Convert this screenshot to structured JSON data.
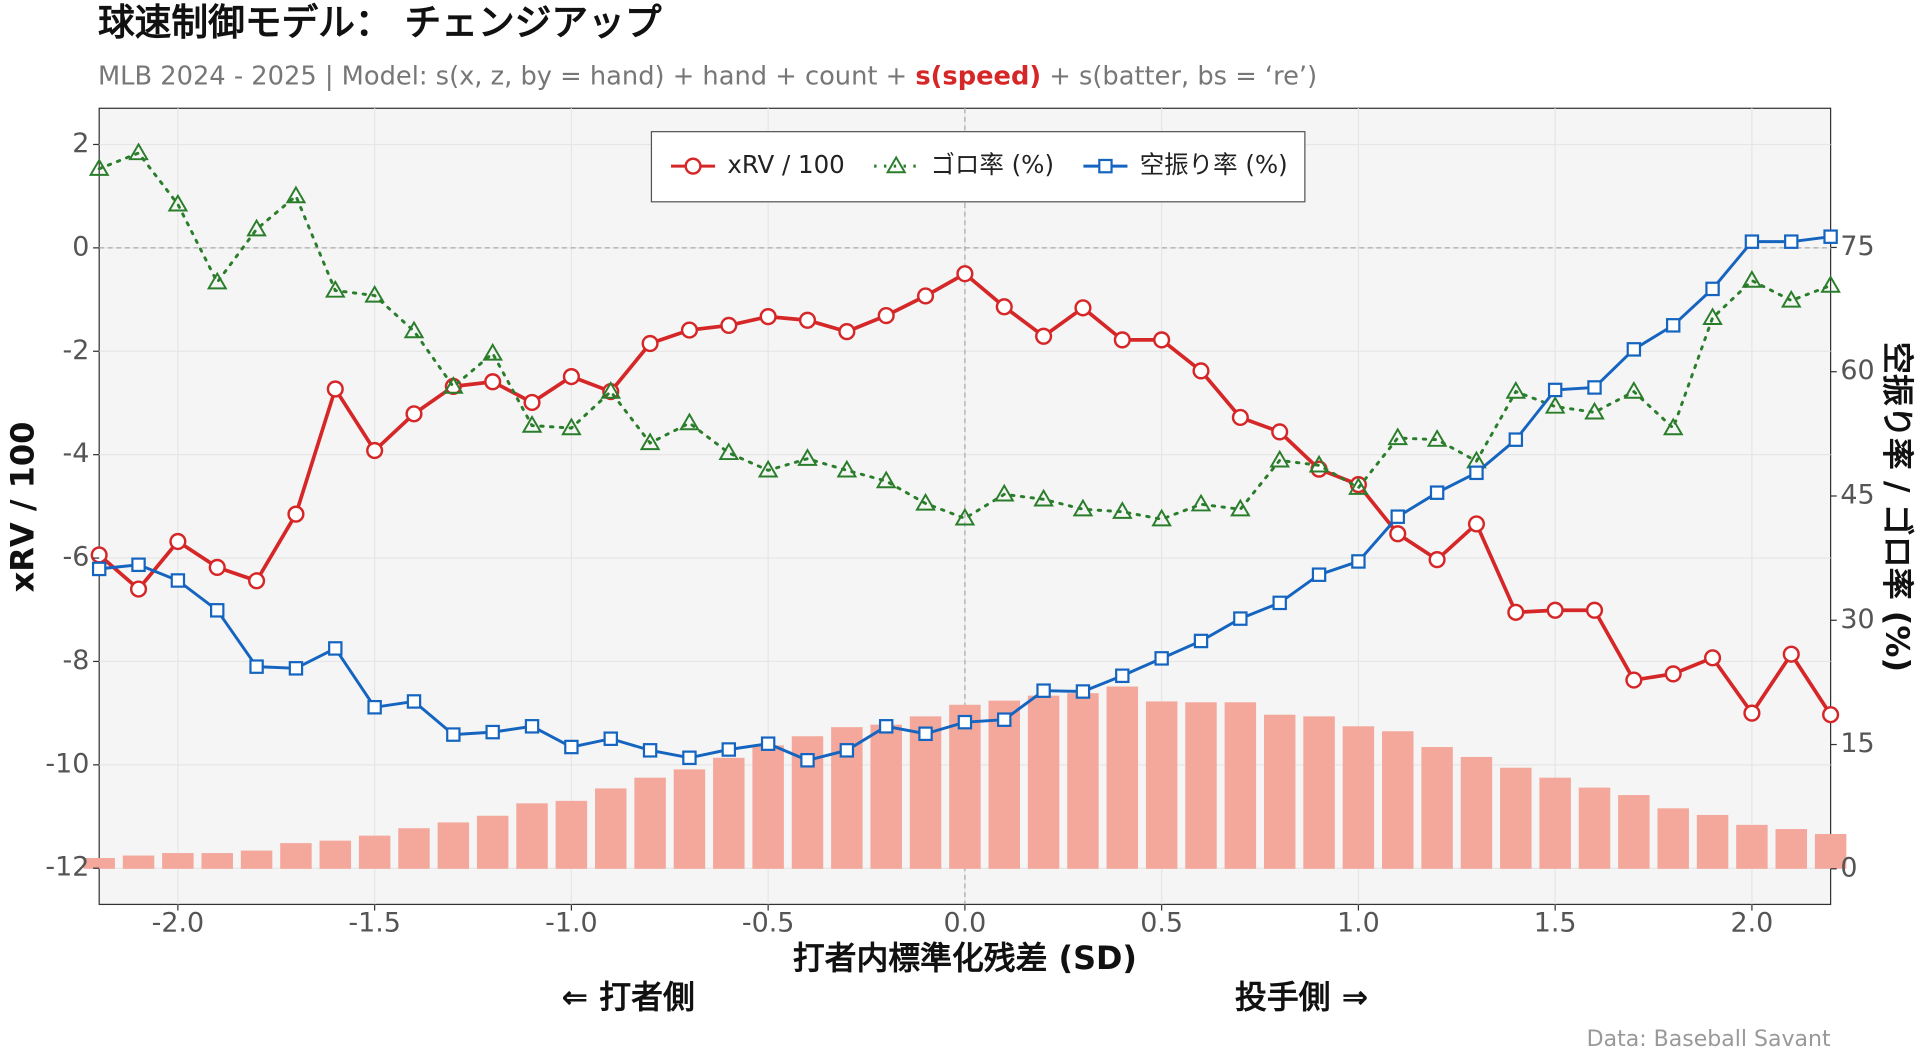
{
  "chart_data": {
    "type": "line",
    "title": "球速制御モデル： チェンジアップ",
    "subtitle": [
      "MLB 2024 - 2025 | Model: s(x, z, by = hand) + hand + count + ",
      "s(speed)",
      " + s(batter, bs = ‘re’)"
    ],
    "subtitle_highlight": 1,
    "subtitle_highlight_color": "#d62728",
    "x_label": "打者内標準化残差 (SD)",
    "y_label": "xRV / 100",
    "y2_label": "空振り率 / ゴロ率 (%)",
    "annotations": [
      "⇐ 打者側",
      "投手側 ⇒"
    ],
    "source": "Data: Baseball Savant",
    "x": [
      -2.2,
      -2.1,
      -2.0,
      -1.9,
      -1.8,
      -1.7,
      -1.6,
      -1.5,
      -1.4,
      -1.3,
      -1.2,
      -1.1,
      -1.0,
      -0.9,
      -0.8,
      -0.7,
      -0.6,
      -0.5,
      -0.4,
      -0.3,
      -0.2,
      -0.1,
      0.0,
      0.1,
      0.2,
      0.3,
      0.4,
      0.5,
      0.6,
      0.7,
      0.8,
      0.9,
      1.0,
      1.1,
      1.2,
      1.3,
      1.4,
      1.5,
      1.6,
      1.7,
      1.8,
      1.9,
      2.0,
      2.1,
      2.2
    ],
    "series": [
      {
        "type": "bar",
        "axis": "y2",
        "color": "#f4a89c",
        "values": [
          1.3,
          1.6,
          1.9,
          1.9,
          2.2,
          3.1,
          3.4,
          4.0,
          4.9,
          5.6,
          6.4,
          7.9,
          8.2,
          9.7,
          11.0,
          12.0,
          13.4,
          14.9,
          16.0,
          17.1,
          17.4,
          18.4,
          19.8,
          20.3,
          20.9,
          21.2,
          22.0,
          20.2,
          20.1,
          20.1,
          18.6,
          18.4,
          17.2,
          16.6,
          14.7,
          13.5,
          12.2,
          11.0,
          9.8,
          8.9,
          7.3,
          6.5,
          5.3,
          4.8,
          4.2
        ]
      },
      {
        "name": "xRV / 100",
        "type": "line",
        "marker": "circle",
        "dash": "solid",
        "color": "#d62728",
        "values": [
          -5.94,
          -6.6,
          -5.68,
          -6.18,
          -6.44,
          -5.15,
          -2.73,
          -3.92,
          -3.21,
          -2.68,
          -2.59,
          -2.99,
          -2.49,
          -2.78,
          -1.85,
          -1.59,
          -1.5,
          -1.33,
          -1.4,
          -1.62,
          -1.31,
          -0.93,
          -0.5,
          -1.14,
          -1.71,
          -1.16,
          -1.78,
          -1.78,
          -2.38,
          -3.28,
          -3.56,
          -4.28,
          -4.58,
          -5.53,
          -6.03,
          -5.34,
          -7.05,
          -7.01,
          -7.01,
          -8.36,
          -8.24,
          -7.93,
          -9.0,
          -7.86,
          -9.03
        ]
      },
      {
        "name": "ゴロ率 (%)",
        "type": "line",
        "axis": "y2",
        "marker": "triangle",
        "dash": "dotted",
        "color": "#2a7d2a",
        "values": [
          84.5,
          86.4,
          80.2,
          70.8,
          77.2,
          81.2,
          69.8,
          69.2,
          64.9,
          58.2,
          62.2,
          53.5,
          53.2,
          57.6,
          51.4,
          53.8,
          50.2,
          48.1,
          49.5,
          48.1,
          46.8,
          44.1,
          42.3,
          45.2,
          44.6,
          43.4,
          43.1,
          42.2,
          44.0,
          43.4,
          49.3,
          48.7,
          46.0,
          52.0,
          51.8,
          49.2,
          57.6,
          55.8,
          55.1,
          57.6,
          53.2,
          66.5,
          71.0,
          68.6,
          70.4
        ]
      },
      {
        "name": "空振り率 (%)",
        "type": "line",
        "axis": "y2",
        "marker": "square",
        "dash": "solid",
        "color": "#1565c0",
        "values": [
          36.2,
          36.7,
          34.8,
          31.2,
          24.4,
          24.2,
          26.6,
          19.5,
          20.2,
          16.2,
          16.5,
          17.2,
          14.7,
          15.7,
          14.3,
          13.4,
          14.4,
          15.1,
          13.1,
          14.3,
          17.2,
          16.3,
          17.7,
          18.0,
          21.5,
          21.4,
          23.3,
          25.4,
          27.5,
          30.2,
          32.1,
          35.5,
          37.1,
          42.5,
          45.4,
          47.8,
          51.8,
          57.8,
          58.1,
          62.7,
          65.6,
          70.0,
          75.7,
          75.7,
          76.3
        ]
      }
    ],
    "xlim": [
      -2.2,
      2.2
    ],
    "xticks": [
      {
        "value": -2.0,
        "label": "-2.0"
      },
      -1.5,
      {
        "value": -1.0,
        "label": "-1.0"
      },
      -0.5,
      {
        "value": 0.0,
        "label": "0.0"
      },
      0.5,
      {
        "value": 1.0,
        "label": "1.0"
      },
      1.5,
      {
        "value": 2.0,
        "label": "2.0"
      }
    ],
    "ylim": [
      -12.7,
      2.7
    ],
    "yticks": [
      2,
      0,
      -2,
      -4,
      -6,
      -8,
      -10,
      -12
    ],
    "y2lim": [
      -4.3,
      91.8
    ],
    "y2ticks": [
      0,
      15,
      30,
      45,
      60,
      75
    ],
    "hline": 0,
    "vline": 0,
    "grid": true,
    "legend": "top"
  }
}
